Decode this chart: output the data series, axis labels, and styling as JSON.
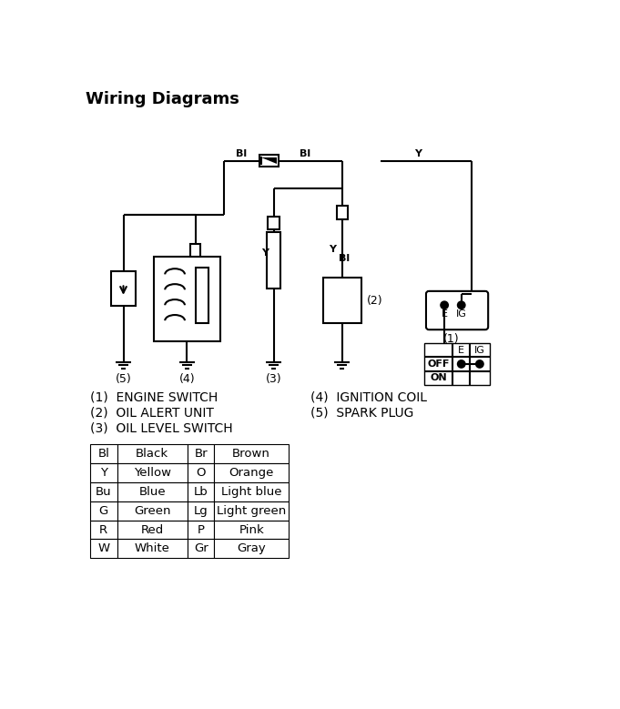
{
  "title": "Wiring Diagrams",
  "background_color": "#ffffff",
  "color_table": [
    [
      "Bl",
      "Black",
      "Br",
      "Brown"
    ],
    [
      "Y",
      "Yellow",
      "O",
      "Orange"
    ],
    [
      "Bu",
      "Blue",
      "Lb",
      "Light blue"
    ],
    [
      "G",
      "Green",
      "Lg",
      "Light green"
    ],
    [
      "R",
      "Red",
      "P",
      "Pink"
    ],
    [
      "W",
      "White",
      "Gr",
      "Gray"
    ]
  ],
  "component_labels": [
    [
      "(1)",
      "ENGINE SWITCH",
      "(4)",
      "IGNITION COIL"
    ],
    [
      "(2)",
      "OIL ALERT UNIT",
      "(5)",
      "SPARK PLUG"
    ],
    [
      "(3)",
      "OIL LEVEL SWITCH",
      "",
      ""
    ]
  ],
  "wire_labels": {
    "Bl_left": "Bl",
    "Bl_right": "Bl",
    "Y_right_bus": "Y",
    "Y_ols": "Y",
    "Y_oau": "Y",
    "Bl_oau": "Bl"
  }
}
